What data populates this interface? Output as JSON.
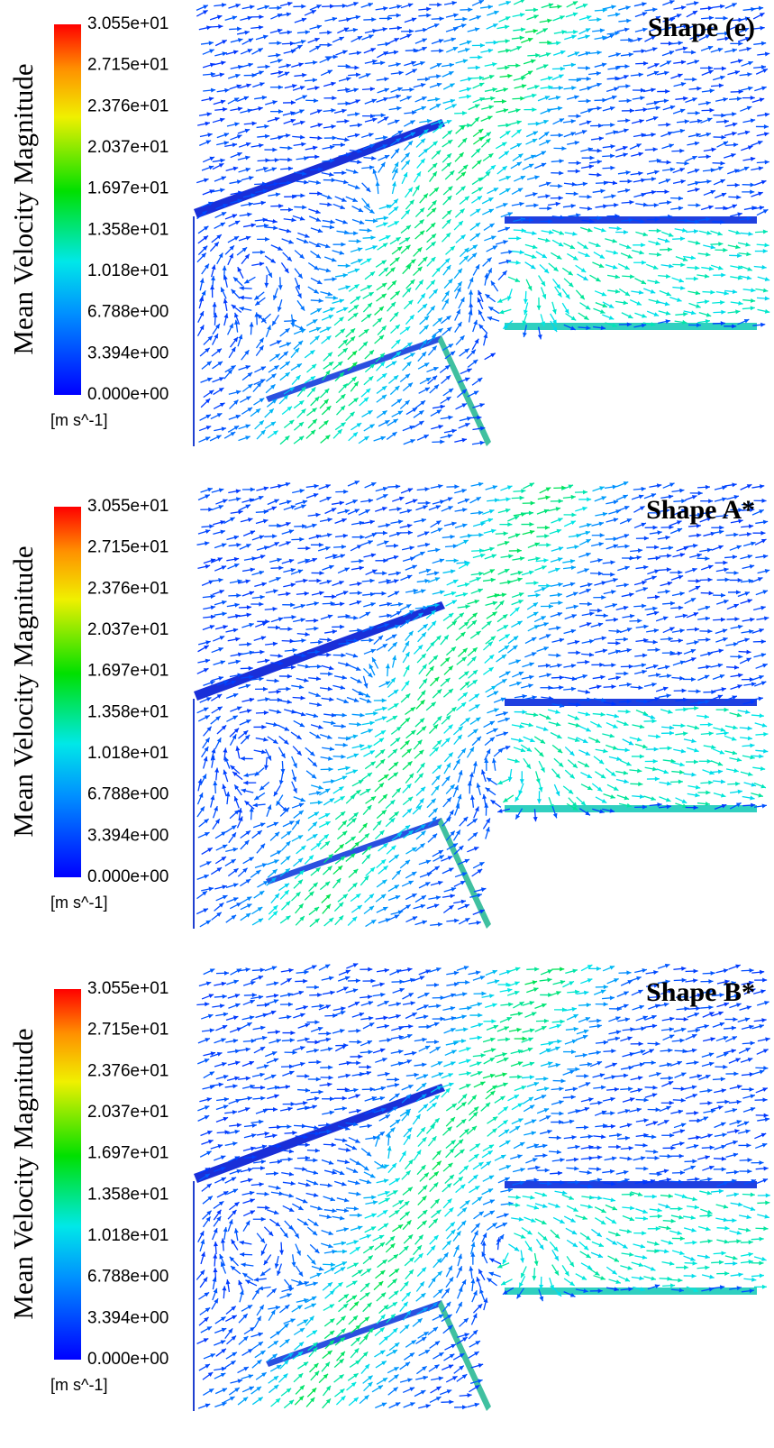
{
  "panels": [
    {
      "title": "Shape (e)"
    },
    {
      "title": "Shape A*"
    },
    {
      "title": "Shape B*"
    }
  ],
  "colorbar": {
    "label": "Mean Velocity Magnitude",
    "ticks": [
      "3.055e+01",
      "2.715e+01",
      "2.376e+01",
      "2.037e+01",
      "1.697e+01",
      "1.358e+01",
      "1.018e+01",
      "6.788e+00",
      "3.394e+00",
      "0.000e+00"
    ],
    "unit": "[m s^-1]"
  }
}
